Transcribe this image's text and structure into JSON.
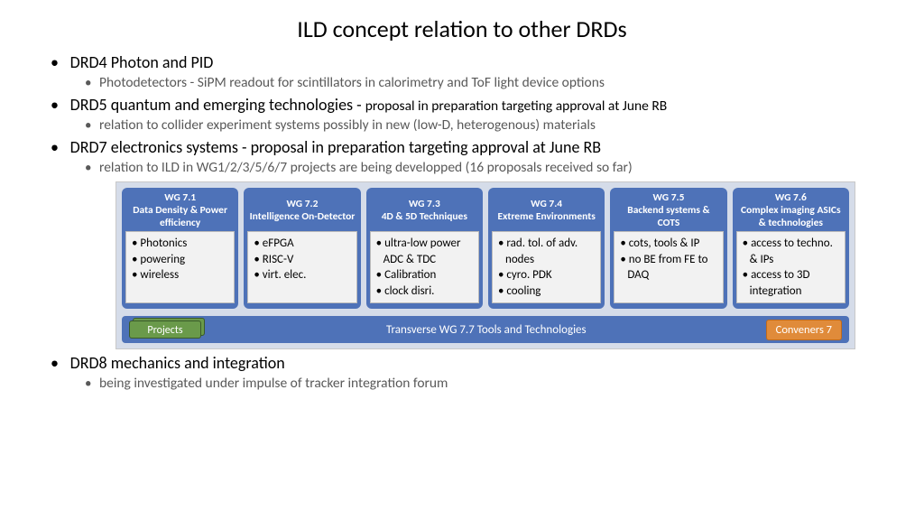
{
  "title": "ILD concept relation to other DRDs",
  "bullets": {
    "drd4": {
      "heading": "DRD4 Photon and PID",
      "sub": "Photodetectors - SiPM readout for scintillators in calorimetry and ToF light device options"
    },
    "drd5": {
      "heading": "DRD5 quantum and emerging technologies - ",
      "heading_tail": "proposal in preparation targeting approval at June RB",
      "sub": "relation to collider experiment systems possibly in new (low-D, heterogenous) materials"
    },
    "drd7": {
      "heading": "DRD7 electronics systems - proposal in preparation targeting approval at June RB",
      "sub": "relation to ILD in WG1/2/3/5/6/7 projects are being developped (16 proposals received so far)"
    },
    "drd8": {
      "heading": "DRD8 mechanics and integration",
      "sub": "being investigated under impulse of tracker integration forum"
    }
  },
  "wg": {
    "cards": [
      {
        "num": "WG 7.1",
        "title": "Data Density & Power efficiency",
        "items": [
          "Photonics",
          "powering",
          "wireless"
        ]
      },
      {
        "num": "WG 7.2",
        "title": "Intelligence On-Detector",
        "items": [
          "eFPGA",
          "RISC-V",
          "virt. elec."
        ]
      },
      {
        "num": "WG 7.3",
        "title": "4D & 5D Techniques",
        "items": [
          "ultra-low power ADC & TDC",
          "Calibration",
          "clock disri."
        ]
      },
      {
        "num": "WG 7.4",
        "title": "Extreme Environments",
        "items": [
          "rad. tol. of adv. nodes",
          "cyro. PDK",
          "cooling"
        ]
      },
      {
        "num": "WG 7.5",
        "title": "Backend systems & COTS",
        "items": [
          "cots, tools & IP",
          "no BE from FE to DAQ"
        ]
      },
      {
        "num": "WG 7.6",
        "title": "Complex imaging ASICs & technologies",
        "items": [
          "access to techno. & IPs",
          "access to 3D integration"
        ]
      }
    ],
    "footer": {
      "projects": "Projects",
      "center": "Transverse WG 7.7 Tools and Technologies",
      "conveners": "Conveners 7"
    }
  },
  "colors": {
    "card_bg": "#4e72b8",
    "block_bg": "#d5dce9",
    "body_bg": "#f2f2f2",
    "projects_bg": "#6a9a4a",
    "conveners_bg": "#e08b3a",
    "subtext": "#595959"
  }
}
